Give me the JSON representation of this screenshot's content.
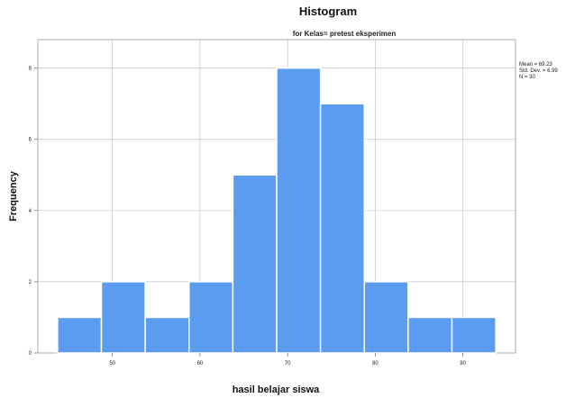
{
  "chart_data": {
    "type": "bar",
    "title": "Histogram",
    "subtitle": "for Kelas= pretest eksperimen",
    "xlabel": "hasil belajar siswa",
    "ylabel": "Frequency",
    "bins": [
      {
        "start": 43.75,
        "end": 48.75,
        "count": 1
      },
      {
        "start": 48.75,
        "end": 53.75,
        "count": 2
      },
      {
        "start": 53.75,
        "end": 58.75,
        "count": 1
      },
      {
        "start": 58.75,
        "end": 63.75,
        "count": 2
      },
      {
        "start": 63.75,
        "end": 68.75,
        "count": 5
      },
      {
        "start": 68.75,
        "end": 73.75,
        "count": 8
      },
      {
        "start": 73.75,
        "end": 78.75,
        "count": 7
      },
      {
        "start": 78.75,
        "end": 83.75,
        "count": 2
      },
      {
        "start": 83.75,
        "end": 88.75,
        "count": 1
      },
      {
        "start": 88.75,
        "end": 93.75,
        "count": 1
      }
    ],
    "xlim": [
      41.5,
      96
    ],
    "ylim": [
      0,
      8.8
    ],
    "x_ticks": [
      50,
      60,
      70,
      80,
      90
    ],
    "y_ticks": [
      0,
      2,
      4,
      6,
      8
    ],
    "grid": true,
    "bar_color": "#5b9bf0",
    "stats": {
      "mean": "Mean = 69.23",
      "std": "Std. Dev. = 6.99",
      "n": "N = 30"
    }
  }
}
